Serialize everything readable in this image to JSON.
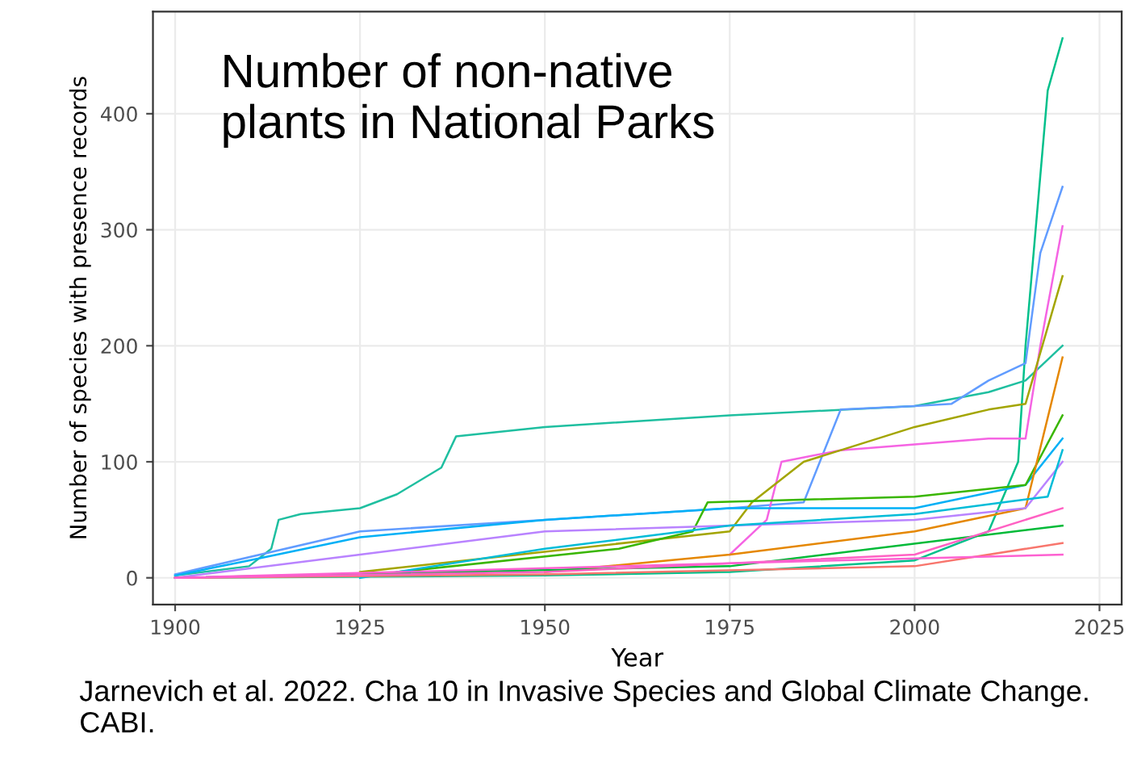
{
  "chart_data": {
    "type": "line",
    "title": "Number of non-native\nplants in National Parks",
    "xlabel": "Year",
    "ylabel": "Number of species with presence records",
    "annotations": [
      "Jarnevich et al. 2022. Cha 10 in Invasive Species and Global Climate Change. CABI."
    ],
    "xlim": [
      1897,
      2028
    ],
    "ylim": [
      -23,
      488
    ],
    "xticks": [
      1900,
      1925,
      1950,
      1975,
      2000,
      2025
    ],
    "yticks": [
      0,
      100,
      200,
      300,
      400
    ],
    "grid": true,
    "legend": false,
    "line_style": "solid",
    "marker": "none",
    "series": [
      {
        "color": "#00c08b",
        "x": [
          1900,
          1950,
          1975,
          2000,
          2010,
          2014,
          2015,
          2018,
          2020
        ],
        "values": [
          0,
          2,
          5,
          15,
          40,
          100,
          200,
          420,
          465
        ]
      },
      {
        "color": "#1fbfa0",
        "x": [
          1900,
          1910,
          1913,
          1914,
          1917,
          1925,
          1930,
          1936,
          1938,
          1950,
          1975,
          2000,
          2010,
          2015,
          2020
        ],
        "values": [
          2,
          10,
          25,
          50,
          55,
          60,
          72,
          95,
          122,
          130,
          140,
          148,
          160,
          170,
          200
        ]
      },
      {
        "color": "#619cff",
        "x": [
          1900,
          1925,
          1950,
          1975,
          1985,
          1990,
          2000,
          2005,
          2010,
          2015,
          2017,
          2020
        ],
        "values": [
          3,
          40,
          50,
          60,
          65,
          145,
          148,
          150,
          170,
          185,
          280,
          337
        ]
      },
      {
        "color": "#f564e3",
        "x": [
          1975,
          1980,
          1982,
          1990,
          2000,
          2010,
          2015,
          2017,
          2020
        ],
        "values": [
          20,
          50,
          100,
          110,
          115,
          120,
          120,
          200,
          303
        ]
      },
      {
        "color": "#a3a500",
        "x": [
          1925,
          1975,
          1978,
          1985,
          2000,
          2010,
          2015,
          2020
        ],
        "values": [
          5,
          40,
          65,
          100,
          130,
          145,
          150,
          260
        ]
      },
      {
        "color": "#00b0f6",
        "x": [
          1900,
          1910,
          1925,
          1950,
          1975,
          2000,
          2015,
          2020
        ],
        "values": [
          2,
          15,
          35,
          50,
          60,
          60,
          80,
          120
        ]
      },
      {
        "color": "#39b600",
        "x": [
          1930,
          1960,
          1970,
          1972,
          2000,
          2015,
          2020
        ],
        "values": [
          5,
          25,
          40,
          65,
          70,
          80,
          140
        ]
      },
      {
        "color": "#e58700",
        "x": [
          1950,
          1975,
          2000,
          2015,
          2020
        ],
        "values": [
          5,
          20,
          40,
          60,
          190
        ]
      },
      {
        "color": "#b983ff",
        "x": [
          1900,
          1925,
          1950,
          2000,
          2015,
          2020
        ],
        "values": [
          0,
          20,
          40,
          50,
          60,
          100
        ]
      },
      {
        "color": "#00bcd8",
        "x": [
          1925,
          1950,
          1975,
          2000,
          2018,
          2020
        ],
        "values": [
          0,
          25,
          45,
          55,
          70,
          110
        ]
      },
      {
        "color": "#00ba38",
        "x": [
          1900,
          1975,
          2020
        ],
        "values": [
          0,
          10,
          45
        ]
      },
      {
        "color": "#f8766d",
        "x": [
          1900,
          1950,
          2000,
          2020
        ],
        "values": [
          0,
          3,
          10,
          30
        ]
      },
      {
        "color": "#ff61c3",
        "x": [
          1900,
          1950,
          2000,
          2020
        ],
        "values": [
          0,
          5,
          20,
          60
        ]
      },
      {
        "color": "#fd61d1",
        "x": [
          1900,
          2020
        ],
        "values": [
          0,
          20
        ]
      }
    ]
  }
}
